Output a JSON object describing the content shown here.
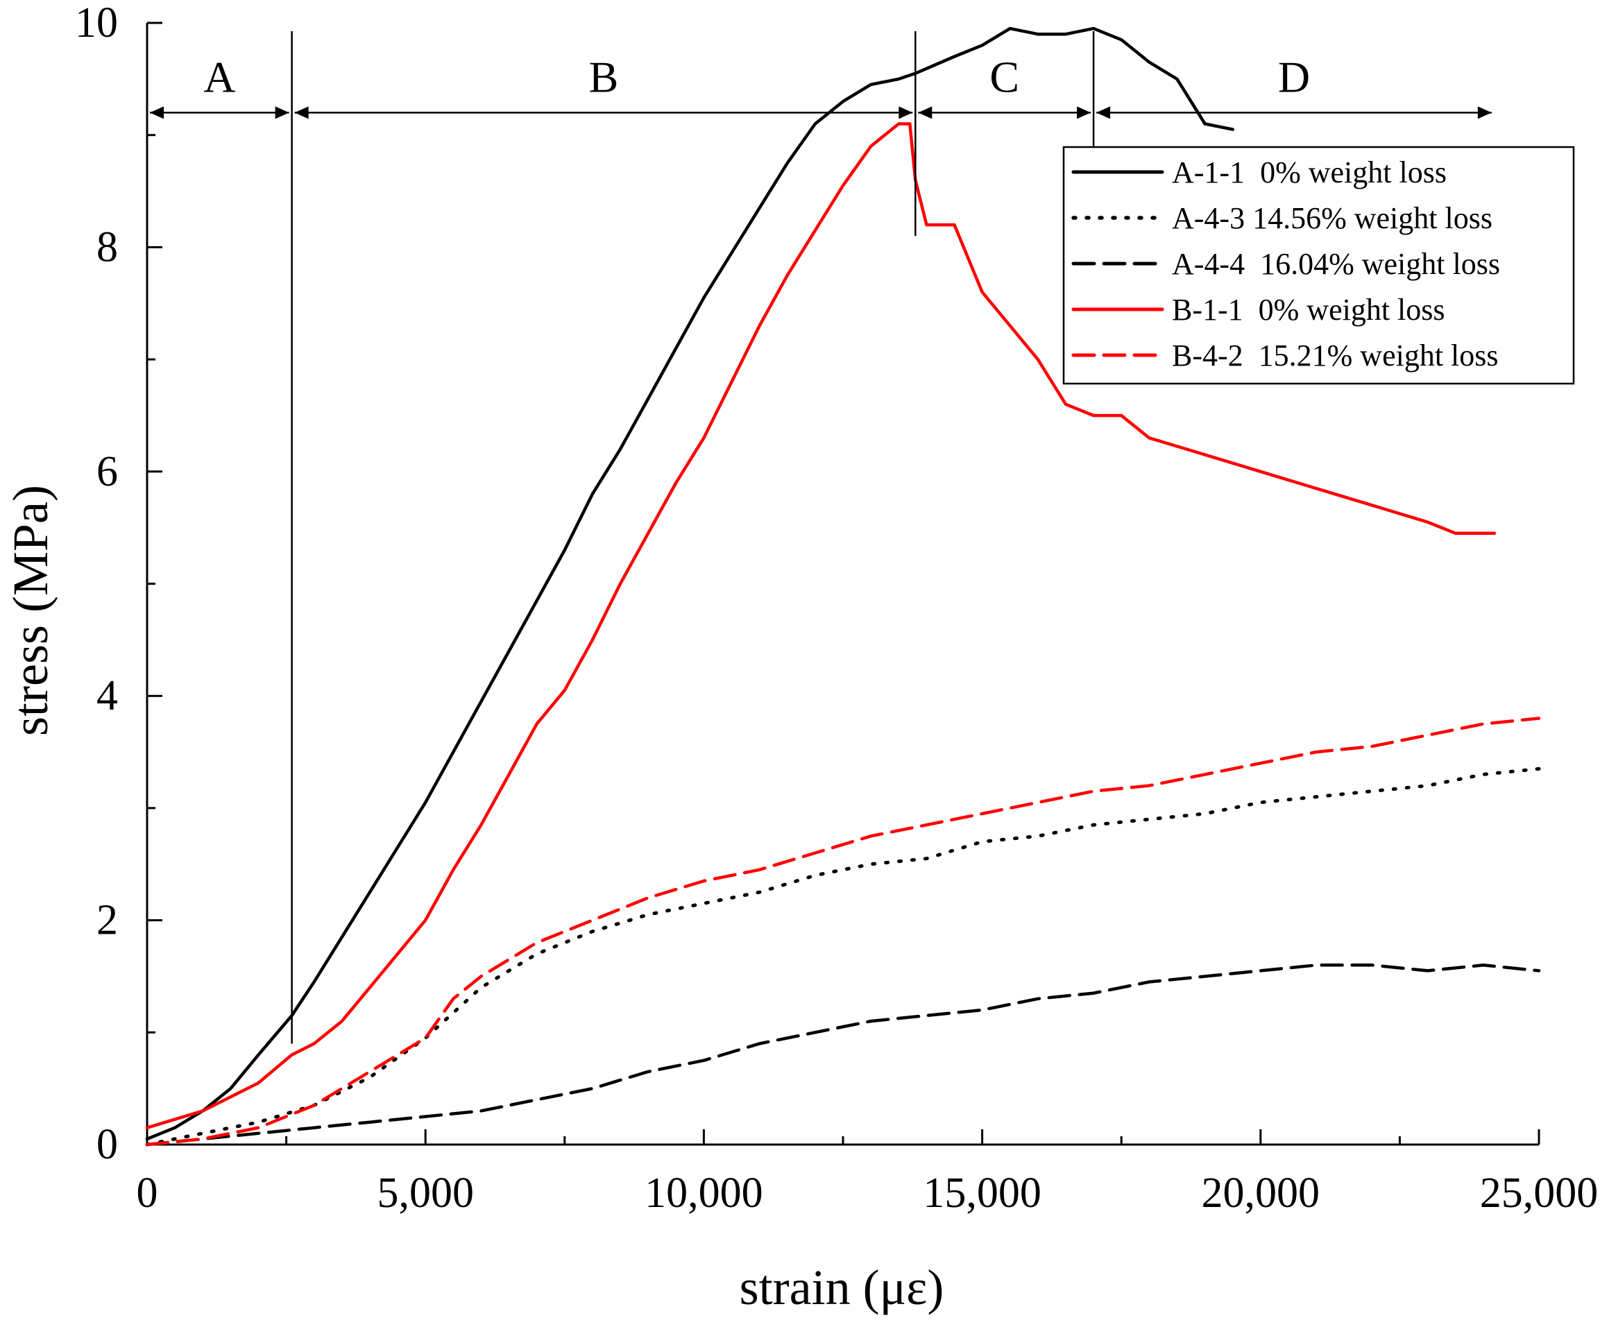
{
  "chart_data": {
    "type": "line",
    "xlabel": "strain (με)",
    "ylabel": "stress (MPa)",
    "xlim": [
      0,
      25000
    ],
    "ylim": [
      0,
      10
    ],
    "x_ticks": [
      0,
      5000,
      10000,
      15000,
      20000,
      25000
    ],
    "x_tick_labels": [
      "0",
      "5,000",
      "10,000",
      "15,000",
      "20,000",
      "25,000"
    ],
    "y_ticks": [
      0,
      2,
      4,
      6,
      8,
      10
    ],
    "y_tick_labels": [
      "0",
      "2",
      "4",
      "6",
      "8",
      "10"
    ],
    "grid": false,
    "legend_position": "top-right",
    "regions": [
      {
        "label": "A",
        "start": 0,
        "end": 2600
      },
      {
        "label": "B",
        "start": 2600,
        "end": 13800
      },
      {
        "label": "C",
        "start": 13800,
        "end": 17000
      },
      {
        "label": "D",
        "start": 17000,
        "end": 24200
      }
    ],
    "region_bounds_stress": [
      9.2,
      8.1
    ],
    "region_arrow_stress": 9.2,
    "series": [
      {
        "name": "A-1-1  0% weight loss",
        "color": "#000000",
        "style": "solid",
        "x": [
          0,
          500,
          1000,
          1500,
          2000,
          2600,
          3000,
          3500,
          4000,
          4500,
          5000,
          5500,
          6000,
          6500,
          7000,
          7500,
          8000,
          8500,
          9000,
          9500,
          10000,
          10500,
          11000,
          11500,
          12000,
          12500,
          13000,
          13500,
          13800,
          14500,
          15000,
          15500,
          16000,
          16500,
          17000,
          17500,
          18000,
          18500,
          19000,
          19500
        ],
        "y": [
          0.05,
          0.15,
          0.3,
          0.5,
          0.8,
          1.15,
          1.45,
          1.85,
          2.25,
          2.65,
          3.05,
          3.5,
          3.95,
          4.4,
          4.85,
          5.3,
          5.8,
          6.2,
          6.65,
          7.1,
          7.55,
          7.95,
          8.35,
          8.75,
          9.1,
          9.3,
          9.45,
          9.5,
          9.55,
          9.7,
          9.8,
          9.95,
          9.9,
          9.9,
          9.95,
          9.85,
          9.65,
          9.5,
          9.1,
          9.05
        ]
      },
      {
        "name": "A-4-3 14.56% weight loss",
        "color": "#000000",
        "style": "dotted",
        "x": [
          0,
          1000,
          2000,
          3000,
          4000,
          5000,
          6000,
          7000,
          8000,
          9000,
          10000,
          11000,
          12000,
          13000,
          14000,
          15000,
          16000,
          17000,
          18000,
          19000,
          20000,
          21000,
          22000,
          23000,
          24000,
          25000
        ],
        "y": [
          0.0,
          0.1,
          0.2,
          0.35,
          0.6,
          0.95,
          1.4,
          1.7,
          1.9,
          2.05,
          2.15,
          2.25,
          2.4,
          2.5,
          2.55,
          2.7,
          2.75,
          2.85,
          2.9,
          2.95,
          3.05,
          3.1,
          3.15,
          3.2,
          3.3,
          3.35
        ]
      },
      {
        "name": "A-4-4  16.04% weight loss",
        "color": "#000000",
        "style": "dashed",
        "x": [
          0,
          1000,
          2000,
          3000,
          4000,
          5000,
          6000,
          7000,
          8000,
          9000,
          10000,
          11000,
          12000,
          13000,
          14000,
          15000,
          16000,
          17000,
          18000,
          19000,
          20000,
          21000,
          22000,
          23000,
          24000,
          25000
        ],
        "y": [
          0.0,
          0.05,
          0.1,
          0.15,
          0.2,
          0.25,
          0.3,
          0.4,
          0.5,
          0.65,
          0.75,
          0.9,
          1.0,
          1.1,
          1.15,
          1.2,
          1.3,
          1.35,
          1.45,
          1.5,
          1.55,
          1.6,
          1.6,
          1.55,
          1.6,
          1.55
        ]
      },
      {
        "name": "B-1-1  0% weight loss",
        "color": "#ff0000",
        "style": "solid",
        "x": [
          0,
          1000,
          2000,
          2600,
          3000,
          3500,
          4000,
          4500,
          5000,
          5500,
          6000,
          6500,
          7000,
          7500,
          8000,
          8500,
          9000,
          9500,
          10000,
          10500,
          11000,
          11500,
          12000,
          12500,
          13000,
          13500,
          13700,
          13800,
          14000,
          14500,
          15000,
          15500,
          16000,
          16500,
          17000,
          17500,
          18000,
          19000,
          20000,
          21000,
          22000,
          23000,
          23500,
          24200
        ],
        "y": [
          0.15,
          0.3,
          0.55,
          0.8,
          0.9,
          1.1,
          1.4,
          1.7,
          2.0,
          2.45,
          2.85,
          3.3,
          3.75,
          4.05,
          4.5,
          5.0,
          5.45,
          5.9,
          6.3,
          6.8,
          7.3,
          7.75,
          8.15,
          8.55,
          8.9,
          9.1,
          9.1,
          8.6,
          8.2,
          8.2,
          7.6,
          7.3,
          7.0,
          6.6,
          6.5,
          6.5,
          6.3,
          6.15,
          6.0,
          5.85,
          5.7,
          5.55,
          5.45,
          5.45
        ]
      },
      {
        "name": "B-4-2  15.21% weight loss",
        "color": "#ff0000",
        "style": "dashed",
        "x": [
          0,
          1000,
          2000,
          3000,
          4000,
          5000,
          5500,
          6000,
          7000,
          8000,
          9000,
          10000,
          11000,
          12000,
          13000,
          14000,
          15000,
          16000,
          17000,
          18000,
          19000,
          20000,
          21000,
          22000,
          23000,
          24000,
          25000
        ],
        "y": [
          0.0,
          0.05,
          0.15,
          0.35,
          0.65,
          0.95,
          1.3,
          1.5,
          1.8,
          2.0,
          2.2,
          2.35,
          2.45,
          2.6,
          2.75,
          2.85,
          2.95,
          3.05,
          3.15,
          3.2,
          3.3,
          3.4,
          3.5,
          3.55,
          3.65,
          3.75,
          3.8
        ]
      }
    ]
  }
}
